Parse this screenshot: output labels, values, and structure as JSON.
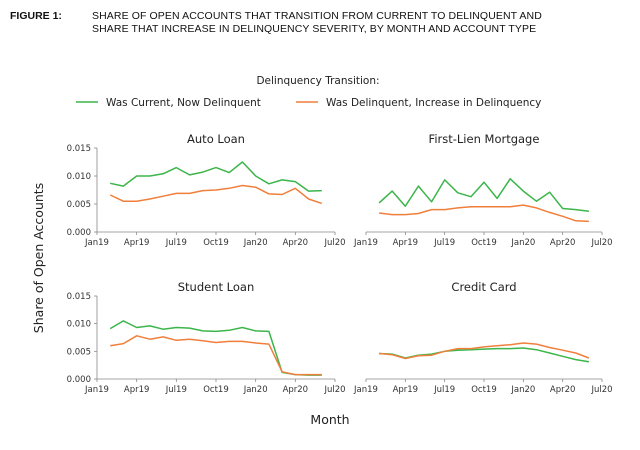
{
  "figure": {
    "label": "FIGURE 1:",
    "title_line1": "SHARE OF OPEN ACCOUNTS THAT TRANSITION FROM CURRENT TO DELINQUENT AND",
    "title_line2": "SHARE THAT INCREASE IN DELINQUENCY SEVERITY, BY MONTH AND ACCOUNT TYPE"
  },
  "legend": {
    "title": "Delinquency Transition:",
    "placement": "top-center"
  },
  "axes": {
    "ylabel": "Share of Open Accounts",
    "xlabel": "Month",
    "x_ticks": [
      "Jan19",
      "Apr19",
      "Jul19",
      "Oct19",
      "Jan20",
      "Apr20",
      "Jul20"
    ],
    "y_ticks": [
      "0.000",
      "0.005",
      "0.010",
      "0.015"
    ]
  },
  "colors": {
    "current_to_delinquent": "#3cb54a",
    "increase_in_delinquency": "#f07f3c"
  },
  "chart_data": {
    "type": "line",
    "months": [
      "2019-02",
      "2019-03",
      "2019-04",
      "2019-05",
      "2019-06",
      "2019-07",
      "2019-08",
      "2019-09",
      "2019-10",
      "2019-11",
      "2019-12",
      "2020-01",
      "2020-02",
      "2020-03",
      "2020-04",
      "2020-05",
      "2020-06"
    ],
    "ylim": [
      0,
      0.015
    ],
    "grid": false,
    "series_names": [
      "Was Current, Now Delinquent",
      "Was Delinquent, Increase in Delinquency"
    ],
    "panels": [
      {
        "title": "Auto Loan",
        "series": [
          {
            "name": "Was Current, Now Delinquent",
            "values": [
              0.0087,
              0.0082,
              0.01,
              0.01,
              0.0104,
              0.0115,
              0.0102,
              0.0107,
              0.0115,
              0.0106,
              0.0125,
              0.01,
              0.0086,
              0.0093,
              0.009,
              0.0073,
              0.0074
            ]
          },
          {
            "name": "Was Delinquent, Increase in Delinquency",
            "values": [
              0.0066,
              0.0055,
              0.0055,
              0.0059,
              0.0064,
              0.0069,
              0.0069,
              0.0074,
              0.0075,
              0.0078,
              0.0083,
              0.008,
              0.0068,
              0.0067,
              0.0078,
              0.0059,
              0.0051
            ]
          }
        ]
      },
      {
        "title": "First-Lien Mortgage",
        "series": [
          {
            "name": "Was Current, Now Delinquent",
            "values": [
              0.0052,
              0.0073,
              0.0046,
              0.0082,
              0.0054,
              0.0093,
              0.007,
              0.0063,
              0.0089,
              0.006,
              0.0095,
              0.0073,
              0.0055,
              0.0071,
              0.0042,
              0.004,
              0.0037
            ]
          },
          {
            "name": "Was Delinquent, Increase in Delinquency",
            "values": [
              0.0034,
              0.0031,
              0.0031,
              0.0033,
              0.004,
              0.004,
              0.0043,
              0.0045,
              0.0045,
              0.0045,
              0.0045,
              0.0048,
              0.0043,
              0.0035,
              0.0028,
              0.002,
              0.0019
            ]
          }
        ]
      },
      {
        "title": "Student Loan",
        "series": [
          {
            "name": "Was Current, Now Delinquent",
            "values": [
              0.0091,
              0.0105,
              0.0093,
              0.0096,
              0.009,
              0.0093,
              0.0092,
              0.0087,
              0.0086,
              0.0088,
              0.0093,
              0.0087,
              0.0086,
              0.0012,
              0.0008,
              0.0007,
              0.0007
            ]
          },
          {
            "name": "Was Delinquent, Increase in Delinquency",
            "values": [
              0.006,
              0.0064,
              0.0078,
              0.0072,
              0.0076,
              0.007,
              0.0072,
              0.0069,
              0.0066,
              0.0068,
              0.0068,
              0.0065,
              0.0063,
              0.0013,
              0.0008,
              0.0008,
              0.0008
            ]
          }
        ]
      },
      {
        "title": "Credit Card",
        "series": [
          {
            "name": "Was Current, Now Delinquent",
            "values": [
              0.0046,
              0.0045,
              0.0038,
              0.0043,
              0.0045,
              0.005,
              0.0052,
              0.0053,
              0.0054,
              0.0055,
              0.0055,
              0.0056,
              0.0053,
              0.0047,
              0.0041,
              0.0035,
              0.0031
            ]
          },
          {
            "name": "Was Delinquent, Increase in Delinquency",
            "values": [
              0.0046,
              0.0044,
              0.0037,
              0.0042,
              0.0043,
              0.005,
              0.0055,
              0.0055,
              0.0058,
              0.006,
              0.0062,
              0.0065,
              0.0063,
              0.0057,
              0.0052,
              0.0047,
              0.0038
            ]
          }
        ]
      }
    ]
  }
}
